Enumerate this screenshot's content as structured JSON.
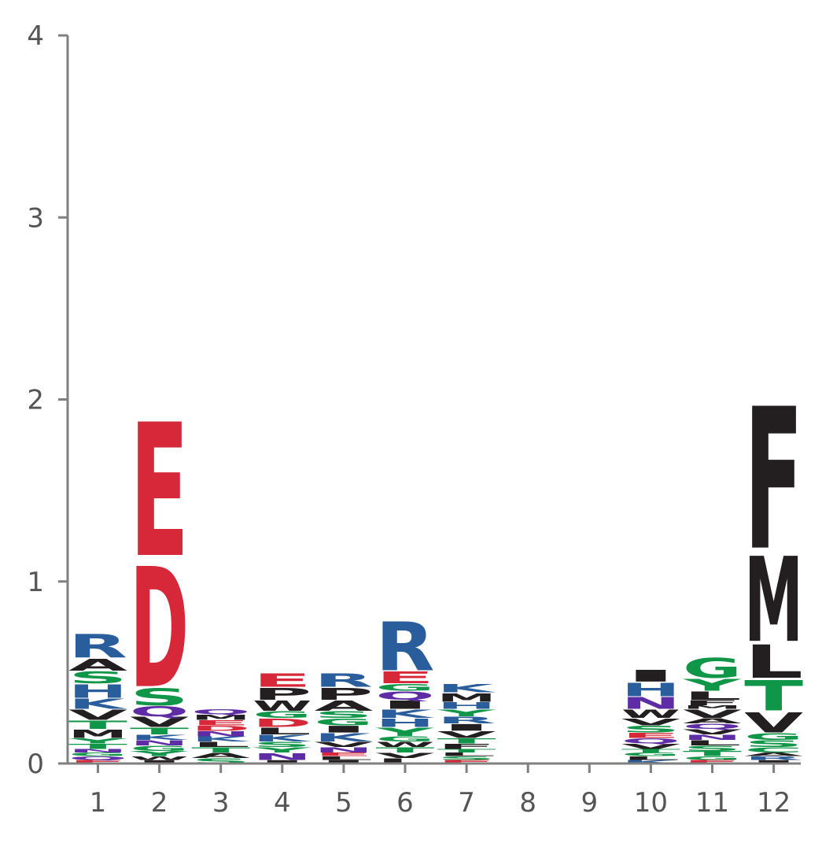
{
  "chart_data": {
    "type": "sequence-logo",
    "title": "",
    "xlabel": "",
    "ylabel": "",
    "ylim": [
      0,
      4
    ],
    "yticks": [
      "0",
      "1",
      "2",
      "3",
      "4"
    ],
    "xticks": [
      "1",
      "2",
      "3",
      "4",
      "5",
      "6",
      "7",
      "8",
      "9",
      "10",
      "11",
      "12"
    ],
    "grid": false,
    "colors": {
      "acidic": "#d62839",
      "basic": "#2a5d9c",
      "polar": "#109648",
      "amide": "#5e2ca5",
      "hydrophobic": "#231f20",
      "axis": "#808080",
      "text": "#555555"
    },
    "positions": [
      {
        "pos": 1,
        "letters": [
          {
            "aa": "E",
            "height": 0.02
          },
          {
            "aa": "Q",
            "height": 0.02
          },
          {
            "aa": "G",
            "height": 0.02
          },
          {
            "aa": "N",
            "height": 0.02
          },
          {
            "aa": "T",
            "height": 0.03
          },
          {
            "aa": "Y",
            "height": 0.03
          },
          {
            "aa": "M",
            "height": 0.05
          },
          {
            "aa": "T",
            "height": 0.05
          },
          {
            "aa": "V",
            "height": 0.06
          },
          {
            "aa": "K",
            "height": 0.06
          },
          {
            "aa": "H",
            "height": 0.08
          },
          {
            "aa": "S",
            "height": 0.07
          },
          {
            "aa": "A",
            "height": 0.07
          },
          {
            "aa": "R",
            "height": 0.14
          }
        ]
      },
      {
        "pos": 2,
        "letters": [
          {
            "aa": "I",
            "height": 0.02
          },
          {
            "aa": "W",
            "height": 0.02
          },
          {
            "aa": "Y",
            "height": 0.03
          },
          {
            "aa": "G",
            "height": 0.03
          },
          {
            "aa": "N",
            "height": 0.03
          },
          {
            "aa": "K",
            "height": 0.03
          },
          {
            "aa": "T",
            "height": 0.04
          },
          {
            "aa": "V",
            "height": 0.06
          },
          {
            "aa": "Q",
            "height": 0.06
          },
          {
            "aa": "S",
            "height": 0.1
          },
          {
            "aa": "D",
            "height": 0.72
          },
          {
            "aa": "E",
            "height": 0.8
          }
        ]
      },
      {
        "pos": 3,
        "letters": [
          {
            "aa": "S",
            "height": 0.03
          },
          {
            "aa": "A",
            "height": 0.03
          },
          {
            "aa": "T",
            "height": 0.03
          },
          {
            "aa": "L",
            "height": 0.03
          },
          {
            "aa": "K",
            "height": 0.03
          },
          {
            "aa": "N",
            "height": 0.03
          },
          {
            "aa": "D",
            "height": 0.03
          },
          {
            "aa": "E",
            "height": 0.03
          },
          {
            "aa": "M",
            "height": 0.03
          },
          {
            "aa": "Q",
            "height": 0.03
          }
        ]
      },
      {
        "pos": 4,
        "letters": [
          {
            "aa": "I",
            "height": 0.02
          },
          {
            "aa": "N",
            "height": 0.04
          },
          {
            "aa": "Y",
            "height": 0.03
          },
          {
            "aa": "S",
            "height": 0.03
          },
          {
            "aa": "K",
            "height": 0.04
          },
          {
            "aa": "L",
            "height": 0.04
          },
          {
            "aa": "D",
            "height": 0.05
          },
          {
            "aa": "G",
            "height": 0.04
          },
          {
            "aa": "W",
            "height": 0.06
          },
          {
            "aa": "P",
            "height": 0.07
          },
          {
            "aa": "E",
            "height": 0.08
          }
        ]
      },
      {
        "pos": 5,
        "letters": [
          {
            "aa": "I",
            "height": 0.02
          },
          {
            "aa": "L",
            "height": 0.02
          },
          {
            "aa": "E",
            "height": 0.02
          },
          {
            "aa": "N",
            "height": 0.03
          },
          {
            "aa": "V",
            "height": 0.03
          },
          {
            "aa": "K",
            "height": 0.05
          },
          {
            "aa": "I",
            "height": 0.04
          },
          {
            "aa": "G",
            "height": 0.04
          },
          {
            "aa": "S",
            "height": 0.04
          },
          {
            "aa": "A",
            "height": 0.06
          },
          {
            "aa": "P",
            "height": 0.07
          },
          {
            "aa": "R",
            "height": 0.08
          }
        ]
      },
      {
        "pos": 6,
        "letters": [
          {
            "aa": "L",
            "height": 0.03
          },
          {
            "aa": "V",
            "height": 0.03
          },
          {
            "aa": "T",
            "height": 0.03
          },
          {
            "aa": "W",
            "height": 0.03
          },
          {
            "aa": "G",
            "height": 0.03
          },
          {
            "aa": "Y",
            "height": 0.05
          },
          {
            "aa": "H",
            "height": 0.05
          },
          {
            "aa": "K",
            "height": 0.05
          },
          {
            "aa": "I",
            "height": 0.05
          },
          {
            "aa": "Q",
            "height": 0.05
          },
          {
            "aa": "G",
            "height": 0.04
          },
          {
            "aa": "E",
            "height": 0.07
          },
          {
            "aa": "R",
            "height": 0.29
          }
        ]
      },
      {
        "pos": 7,
        "letters": [
          {
            "aa": "E",
            "height": 0.02
          },
          {
            "aa": "S",
            "height": 0.02
          },
          {
            "aa": "L",
            "height": 0.02
          },
          {
            "aa": "T",
            "height": 0.02
          },
          {
            "aa": "F",
            "height": 0.03
          },
          {
            "aa": "T",
            "height": 0.03
          },
          {
            "aa": "V",
            "height": 0.04
          },
          {
            "aa": "I",
            "height": 0.04
          },
          {
            "aa": "R",
            "height": 0.04
          },
          {
            "aa": "Y",
            "height": 0.04
          },
          {
            "aa": "H",
            "height": 0.04
          },
          {
            "aa": "M",
            "height": 0.05
          },
          {
            "aa": "K",
            "height": 0.05
          }
        ]
      },
      {
        "pos": 8,
        "letters": []
      },
      {
        "pos": 9,
        "letters": []
      },
      {
        "pos": 10,
        "letters": [
          {
            "aa": "K",
            "height": 0.02
          },
          {
            "aa": "L",
            "height": 0.02
          },
          {
            "aa": "G",
            "height": 0.02
          },
          {
            "aa": "T",
            "height": 0.02
          },
          {
            "aa": "V",
            "height": 0.03
          },
          {
            "aa": "Q",
            "height": 0.03
          },
          {
            "aa": "E",
            "height": 0.03
          },
          {
            "aa": "S",
            "height": 0.04
          },
          {
            "aa": "V",
            "height": 0.04
          },
          {
            "aa": "W",
            "height": 0.05
          },
          {
            "aa": "N",
            "height": 0.07
          },
          {
            "aa": "H",
            "height": 0.08
          },
          {
            "aa": "I",
            "height": 0.07
          }
        ]
      },
      {
        "pos": 11,
        "letters": [
          {
            "aa": "E",
            "height": 0.02
          },
          {
            "aa": "G",
            "height": 0.02
          },
          {
            "aa": "T",
            "height": 0.03
          },
          {
            "aa": "S",
            "height": 0.03
          },
          {
            "aa": "L",
            "height": 0.03
          },
          {
            "aa": "N",
            "height": 0.03
          },
          {
            "aa": "V",
            "height": 0.03
          },
          {
            "aa": "Q",
            "height": 0.03
          },
          {
            "aa": "A",
            "height": 0.03
          },
          {
            "aa": "V",
            "height": 0.05
          },
          {
            "aa": "M",
            "height": 0.02
          },
          {
            "aa": "F",
            "height": 0.03
          },
          {
            "aa": "L",
            "height": 0.05
          },
          {
            "aa": "Y",
            "height": 0.07
          },
          {
            "aa": "G",
            "height": 0.12
          }
        ]
      },
      {
        "pos": 12,
        "letters": [
          {
            "aa": "I",
            "height": 0.02
          },
          {
            "aa": "R",
            "height": 0.02
          },
          {
            "aa": "A",
            "height": 0.02
          },
          {
            "aa": "C",
            "height": 0.03
          },
          {
            "aa": "S",
            "height": 0.04
          },
          {
            "aa": "G",
            "height": 0.04
          },
          {
            "aa": "V",
            "height": 0.12
          },
          {
            "aa": "T",
            "height": 0.18
          },
          {
            "aa": "L",
            "height": 0.2
          },
          {
            "aa": "M",
            "height": 0.51
          },
          {
            "aa": "F",
            "height": 0.85
          }
        ]
      }
    ],
    "aa_colors": {
      "E": "#d62839",
      "D": "#d62839",
      "R": "#2a5d9c",
      "K": "#2a5d9c",
      "H": "#2a5d9c",
      "S": "#109648",
      "T": "#109648",
      "G": "#109648",
      "Y": "#109648",
      "C": "#109648",
      "N": "#5e2ca5",
      "Q": "#5e2ca5",
      "A": "#231f20",
      "V": "#231f20",
      "L": "#231f20",
      "I": "#231f20",
      "M": "#231f20",
      "F": "#231f20",
      "W": "#231f20",
      "P": "#231f20"
    }
  }
}
